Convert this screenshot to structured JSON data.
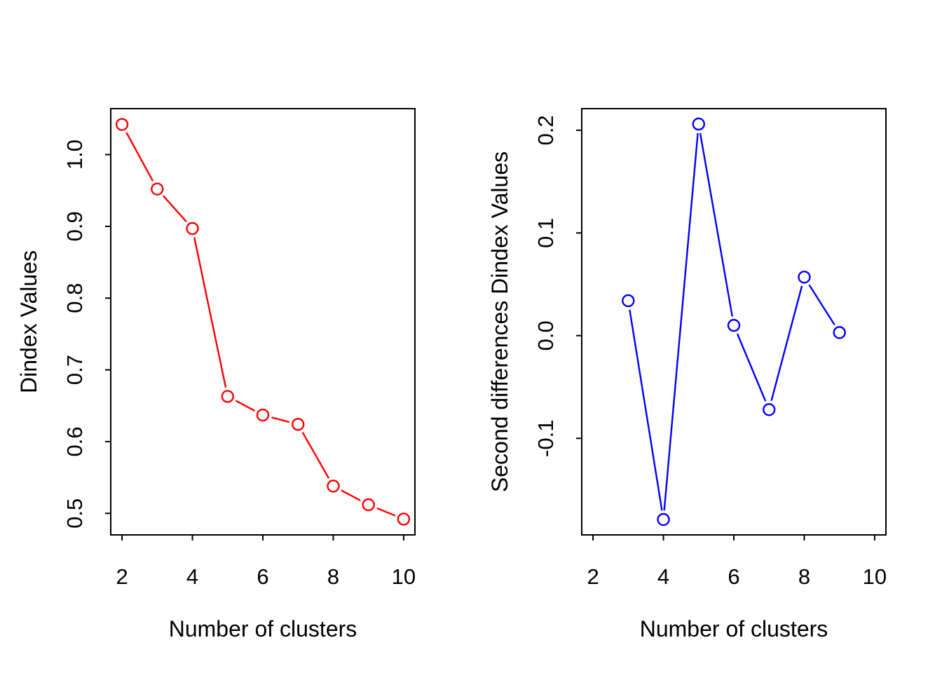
{
  "page": {
    "background": "#ffffff",
    "description": "Two-panel R base graphics line plots of Dindex cluster validation values"
  },
  "chart_data": [
    {
      "type": "line",
      "panel": "left",
      "title": "",
      "xlabel": "Number of clusters",
      "ylabel": "Dindex Values",
      "line_color": "#ff0000",
      "marker": "open-circle",
      "line_style": "points-and-lines-with-gaps",
      "grid": false,
      "legend": null,
      "x": [
        2,
        3,
        4,
        5,
        6,
        7,
        8,
        9,
        10
      ],
      "y": [
        1.042,
        0.952,
        0.897,
        0.663,
        0.637,
        0.624,
        0.538,
        0.512,
        0.492
      ],
      "xlim": [
        1.68,
        10.32
      ],
      "ylim": [
        0.47,
        1.064
      ],
      "xtick_values": [
        2,
        4,
        6,
        8,
        10
      ],
      "xtick_labels": [
        "2",
        "4",
        "6",
        "8",
        "10"
      ],
      "ytick_values": [
        0.5,
        0.6,
        0.7,
        0.8,
        0.9,
        1.0
      ],
      "ytick_labels": [
        "0.5",
        "0.6",
        "0.7",
        "0.8",
        "0.9",
        "1.0"
      ]
    },
    {
      "type": "line",
      "panel": "right",
      "title": "",
      "xlabel": "Number of clusters",
      "ylabel": "Second differences Dindex Values",
      "line_color": "#0000ff",
      "marker": "open-circle",
      "line_style": "points-and-lines-with-gaps",
      "grid": false,
      "legend": null,
      "x": [
        3,
        4,
        5,
        6,
        7,
        8,
        9
      ],
      "y": [
        0.034,
        -0.179,
        0.206,
        0.01,
        -0.072,
        0.057,
        0.003
      ],
      "xlim": [
        1.68,
        10.32
      ],
      "ylim": [
        -0.194,
        0.221
      ],
      "xtick_values": [
        2,
        4,
        6,
        8,
        10
      ],
      "xtick_labels": [
        "2",
        "4",
        "6",
        "8",
        "10"
      ],
      "ytick_values": [
        -0.1,
        0.0,
        0.1,
        0.2
      ],
      "ytick_labels": [
        "-0.1",
        "0.0",
        "0.1",
        "0.2"
      ]
    }
  ],
  "axis": {
    "color": "#000000"
  }
}
